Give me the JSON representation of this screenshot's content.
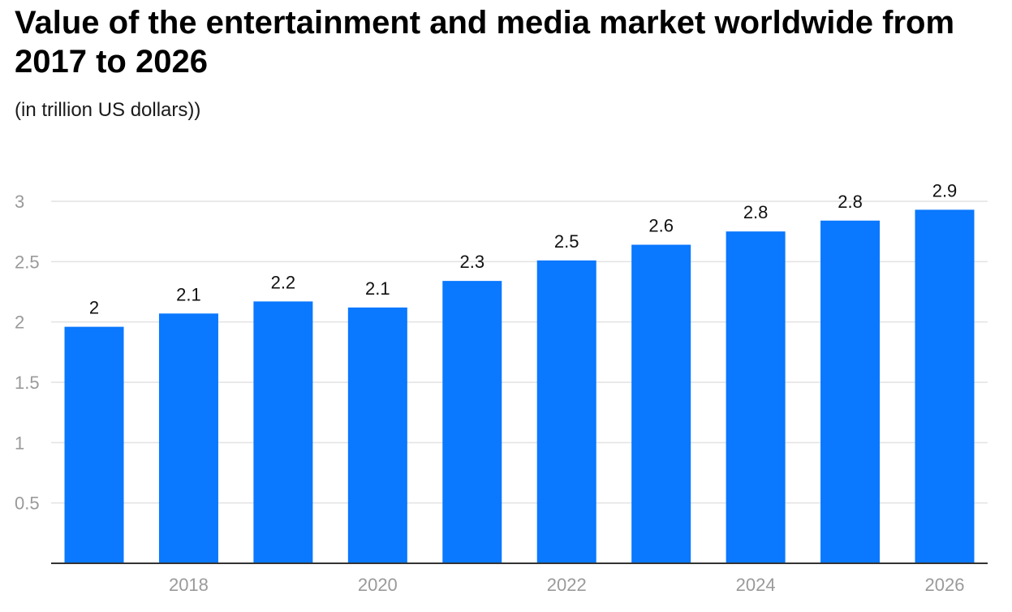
{
  "header": {
    "title": "Value of the entertainment and media market worldwide from 2017 to 2026",
    "subtitle": "(in trillion US dollars))"
  },
  "chart_data": {
    "type": "bar",
    "title": "Value of the entertainment and media market worldwide from 2017 to 2026",
    "subtitle": "(in trillion US dollars))",
    "categories": [
      "2017",
      "2018",
      "2019",
      "2020",
      "2021",
      "2022",
      "2023",
      "2024",
      "2025",
      "2026"
    ],
    "x_tick_labels": [
      "2018",
      "2020",
      "2022",
      "2024",
      "2026"
    ],
    "values": [
      1.96,
      2.07,
      2.17,
      2.12,
      2.34,
      2.51,
      2.64,
      2.75,
      2.84,
      2.93
    ],
    "data_labels": [
      "2",
      "2.1",
      "2.2",
      "2.1",
      "2.3",
      "2.5",
      "2.6",
      "2.8",
      "2.8",
      "2.9"
    ],
    "y_ticks": [
      "0.5",
      "1",
      "1.5",
      "2",
      "2.5",
      "3"
    ],
    "ylim": [
      0,
      3
    ],
    "xlabel": "",
    "ylabel": "",
    "grid": true,
    "legend": "none",
    "colors": {
      "bar": "#0a78ff",
      "grid": "#e2e2e2",
      "axis": "#333333",
      "tick_text": "#9a9a9a",
      "label_text": "#111111"
    }
  }
}
